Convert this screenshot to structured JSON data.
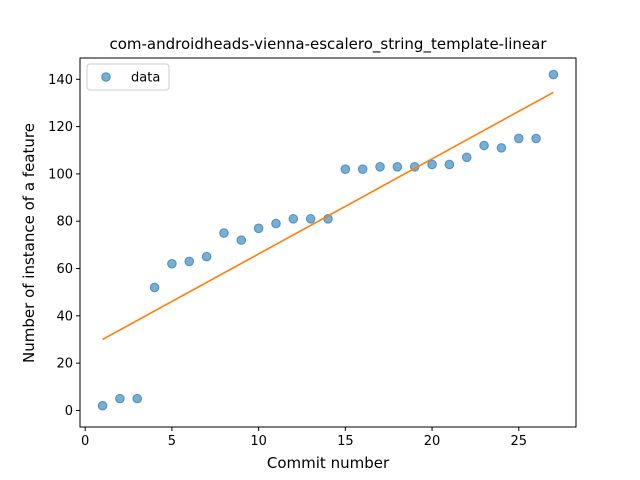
{
  "chart_data": {
    "type": "scatter",
    "title": "com-androidheads-vienna-escalero_string_template-linear",
    "xlabel": "Commit number",
    "ylabel": "Number of instance of a feature",
    "xlim": [
      -0.3,
      28.3
    ],
    "ylim": [
      -7,
      149
    ],
    "xticks": [
      0,
      5,
      10,
      15,
      20,
      25
    ],
    "yticks": [
      0,
      20,
      40,
      60,
      80,
      100,
      120,
      140
    ],
    "grid": false,
    "legend": {
      "placement": "top-left",
      "entries": [
        "data"
      ]
    },
    "series": [
      {
        "name": "data",
        "kind": "scatter",
        "color": "#1f77b4",
        "x": [
          1,
          2,
          3,
          4,
          5,
          6,
          7,
          8,
          9,
          10,
          11,
          12,
          13,
          14,
          15,
          16,
          17,
          18,
          19,
          20,
          21,
          22,
          23,
          24,
          25,
          26,
          27
        ],
        "y": [
          2,
          5,
          5,
          52,
          62,
          63,
          65,
          75,
          72,
          77,
          79,
          81,
          81,
          81,
          102,
          102,
          103,
          103,
          103,
          104,
          104,
          107,
          112,
          111,
          115,
          115,
          142
        ]
      },
      {
        "kind": "line",
        "color": "#ff7f0e",
        "x": [
          1,
          27
        ],
        "y": [
          30,
          134.5
        ]
      }
    ]
  }
}
